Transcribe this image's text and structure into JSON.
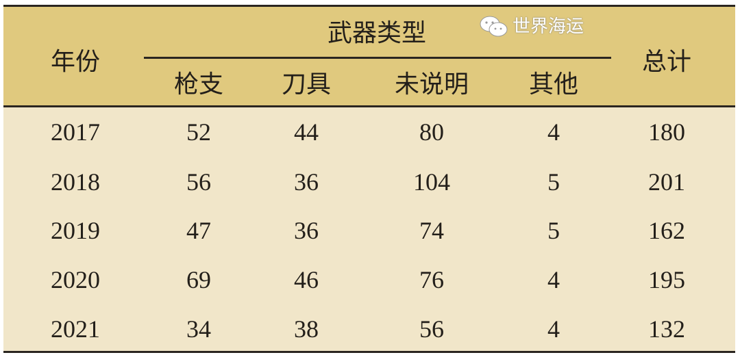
{
  "table": {
    "header": {
      "year": "年份",
      "group": "武器类型",
      "columns": [
        "枪支",
        "刀具",
        "未说明",
        "其他"
      ],
      "total": "总计"
    },
    "rows": [
      [
        "2017",
        "52",
        "44",
        "80",
        "4",
        "180"
      ],
      [
        "2018",
        "56",
        "36",
        "104",
        "5",
        "201"
      ],
      [
        "2019",
        "47",
        "36",
        "74",
        "5",
        "162"
      ],
      [
        "2020",
        "69",
        "46",
        "76",
        "4",
        "195"
      ],
      [
        "2021",
        "34",
        "38",
        "56",
        "4",
        "132"
      ]
    ]
  },
  "watermark": {
    "icon": "wechat-icon",
    "text": "世界海运"
  },
  "colors": {
    "header_bg": "#e0c97e",
    "body_bg": "#f1e6c9",
    "rule": "#2a2520"
  }
}
